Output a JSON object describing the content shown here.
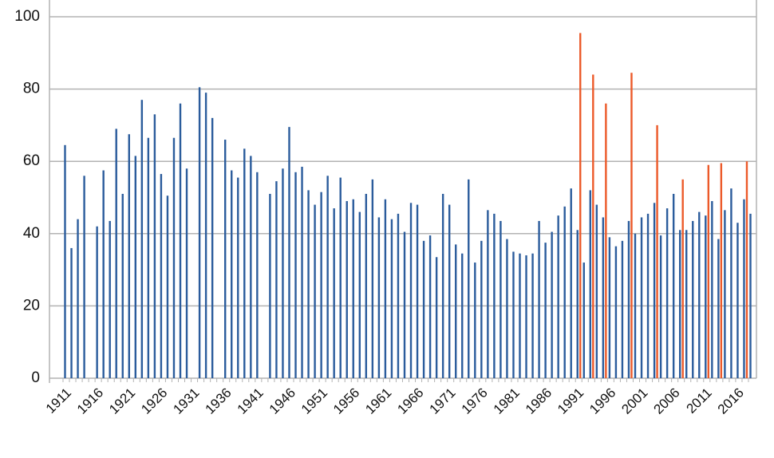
{
  "chart_data": {
    "type": "bar",
    "categories": [
      "1911",
      null,
      null,
      null,
      null,
      "1916",
      null,
      null,
      null,
      null,
      "1921",
      null,
      null,
      null,
      null,
      "1926",
      null,
      null,
      null,
      null,
      "1931",
      null,
      null,
      null,
      null,
      "1936",
      null,
      null,
      null,
      null,
      "1941",
      null,
      null,
      null,
      null,
      "1946",
      null,
      null,
      null,
      null,
      "1951",
      null,
      null,
      null,
      null,
      "1956",
      null,
      null,
      null,
      null,
      "1961",
      null,
      null,
      null,
      null,
      "1966",
      null,
      null,
      null,
      null,
      "1971",
      null,
      null,
      null,
      null,
      "1976",
      null,
      null,
      null,
      null,
      "1981",
      null,
      null,
      null,
      null,
      "1986",
      null,
      null,
      null,
      null,
      "1991",
      null,
      null,
      null,
      null,
      "1996",
      null,
      null,
      null,
      null,
      "2001",
      null,
      null,
      null,
      null,
      "2006",
      null,
      null,
      null,
      null,
      "2011",
      null,
      null,
      null,
      null,
      "2016",
      null,
      null
    ],
    "series": [
      {
        "color": "#2b5c9c",
        "values": [
          64.5,
          36,
          44,
          56,
          null,
          42,
          57.5,
          43.5,
          69,
          51,
          67.5,
          61.5,
          77,
          66.5,
          73,
          56.5,
          50.5,
          66.5,
          76,
          58,
          null,
          80.5,
          79,
          72,
          null,
          66,
          57.5,
          55.5,
          63.5,
          61.5,
          57,
          null,
          51,
          54.5,
          58,
          69.5,
          57,
          58.5,
          52,
          48,
          51.5,
          56,
          47,
          55.5,
          49,
          49.5,
          46,
          51,
          55,
          44.5,
          49.5,
          44,
          45.5,
          40.5,
          48.5,
          48,
          38,
          39.5,
          33.5,
          51,
          48,
          37,
          34.5,
          55,
          32,
          38,
          46.5,
          45.5,
          43.5,
          38.5,
          35,
          34.5,
          34,
          34.5,
          43.5,
          37.5,
          40.5,
          45,
          47.5,
          52.5,
          41,
          32,
          52,
          48,
          44.5,
          39,
          36.5,
          38,
          43.5,
          40,
          44.5,
          45.5,
          48.5,
          39.5,
          47,
          51,
          41,
          41,
          43.5,
          46,
          45,
          49,
          38.5,
          46.5,
          52.5,
          43,
          49.5,
          45.5
        ]
      },
      {
        "color": "#ec5a2a",
        "values": [
          null,
          null,
          null,
          null,
          null,
          null,
          null,
          null,
          null,
          null,
          null,
          null,
          null,
          null,
          null,
          null,
          null,
          null,
          null,
          null,
          null,
          null,
          null,
          null,
          null,
          null,
          null,
          null,
          null,
          null,
          null,
          null,
          null,
          null,
          null,
          null,
          null,
          null,
          null,
          null,
          null,
          null,
          null,
          null,
          null,
          null,
          null,
          null,
          null,
          null,
          null,
          null,
          null,
          null,
          null,
          null,
          null,
          null,
          null,
          null,
          null,
          null,
          null,
          null,
          null,
          null,
          null,
          null,
          null,
          null,
          null,
          null,
          null,
          null,
          null,
          null,
          null,
          null,
          null,
          null,
          95.5,
          null,
          84,
          null,
          76,
          null,
          null,
          null,
          84.5,
          null,
          null,
          null,
          70,
          null,
          null,
          null,
          55,
          null,
          null,
          null,
          59,
          null,
          59.5,
          null,
          null,
          null,
          60,
          null
        ]
      }
    ],
    "ylim": [
      0,
      100
    ],
    "yticks": [
      0,
      20,
      40,
      60,
      80,
      100
    ],
    "grid": true
  }
}
